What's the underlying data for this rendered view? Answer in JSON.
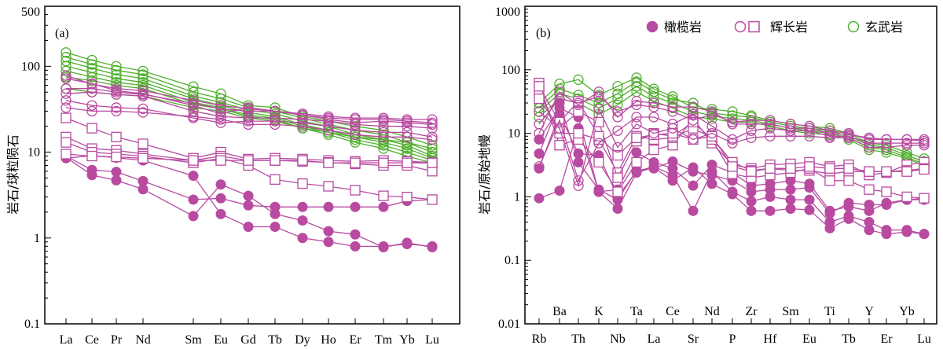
{
  "colors": {
    "magenta": "#b84aa0",
    "green": "#4fae2c",
    "axis": "#000000"
  },
  "panels": [
    {
      "label": "(a)",
      "ylabel": "岩石/球粒陨石",
      "ytick_labels": [
        "500",
        "100",
        "10",
        "1",
        "0.1"
      ],
      "yticks": [
        500,
        100,
        10,
        1,
        0.1
      ],
      "ylim": [
        0.1,
        500
      ],
      "categories": [
        "La",
        "Ce",
        "Pr",
        "Nd",
        "Sm",
        "Eu",
        "Gd",
        "Tb",
        "Dy",
        "Ho",
        "Er",
        "Tm",
        "Yb",
        "Lu"
      ]
    },
    {
      "label": "(b)",
      "ylabel": "岩石/原始地幔",
      "ytick_labels": [
        "1000",
        "100",
        "10",
        "1",
        "0.1",
        "0.01"
      ],
      "yticks": [
        1000,
        100,
        10,
        1,
        0.1,
        0.01
      ],
      "ylim": [
        0.01,
        1000
      ],
      "categories": [
        "Rb",
        "Ba",
        "Th",
        "K",
        "Nb",
        "Ta",
        "La",
        "Ce",
        "Sr",
        "Nd",
        "P",
        "Zr",
        "Hf",
        "Sm",
        "Eu",
        "Ti",
        "Tb",
        "Y",
        "Er",
        "Yb",
        "Lu"
      ]
    }
  ],
  "legend": [
    {
      "name": "橄榄岩",
      "symbol": "filled-circle",
      "color": "#b84aa0"
    },
    {
      "name": "辉长岩",
      "symbol": "open-circle-and-square",
      "color": "#b84aa0"
    },
    {
      "name": "玄武岩",
      "symbol": "open-circle",
      "color": "#4fae2c"
    }
  ],
  "chart_data": [
    {
      "type": "line",
      "title": "",
      "xlabel": "",
      "ylabel": "岩石/球粒陨石",
      "yscale": "log",
      "ylim": [
        0.1,
        500
      ],
      "categories": [
        "La",
        "Ce",
        "Pr",
        "Nd",
        "Sm",
        "Eu",
        "Gd",
        "Tb",
        "Dy",
        "Ho",
        "Er",
        "Tm",
        "Yb",
        "Lu"
      ],
      "series": [
        {
          "group": "橄榄岩",
          "marker": "filled-circle",
          "values": [
            9,
            6.2,
            5.9,
            4.6,
            2.8,
            2.9,
            2.4,
            2.3,
            2.3,
            2.3,
            2.3,
            2.3,
            2.7,
            2.8
          ]
        },
        {
          "group": "橄榄岩",
          "marker": "filled-circle",
          "values": [
            8.7,
            5.4,
            4.7,
            3.7,
            1.8,
            4.2,
            3.1,
            1.9,
            1.6,
            1.2,
            1.1,
            0.78,
            0.88,
            0.78
          ]
        },
        {
          "group": "橄榄岩",
          "marker": "filled-circle",
          "values": [
            8.5,
            9.1,
            8.6,
            8.0,
            5.3,
            1.9,
            1.35,
            1.35,
            1.0,
            0.9,
            0.8,
            0.8,
            0.85,
            0.8
          ]
        },
        {
          "group": "辉长岩",
          "marker": "open-square",
          "values": [
            25,
            19,
            15,
            12.5,
            8.5,
            10,
            8.3,
            8.5,
            8.3,
            8.0,
            7.8,
            8.0,
            7.8,
            7.6
          ]
        },
        {
          "group": "辉长岩",
          "marker": "open-square",
          "values": [
            15,
            11,
            10.5,
            9.5,
            8.0,
            9.0,
            8.0,
            8.0,
            7.8,
            7.6,
            7.3,
            7.0,
            7.0,
            6.0
          ]
        },
        {
          "group": "辉长岩",
          "marker": "open-square",
          "values": [
            13,
            10,
            9.5,
            9.0,
            7.5,
            8.5,
            7.0,
            4.8,
            4.3,
            4.0,
            3.6,
            3.1,
            3.0,
            2.8
          ]
        },
        {
          "group": "辉长岩",
          "marker": "open-square",
          "values": [
            9.5,
            9.0,
            8.8,
            8.5,
            8.0,
            8.0,
            8.0,
            8.0,
            8.0,
            7.5,
            7.5,
            7.5,
            7.5,
            7.5
          ]
        },
        {
          "group": "辉长岩",
          "marker": "open-circle",
          "values": [
            72,
            63,
            52,
            48,
            35,
            28,
            33,
            30,
            27,
            24,
            22,
            23,
            22,
            21
          ]
        },
        {
          "group": "辉长岩",
          "marker": "open-circle",
          "values": [
            48,
            50,
            47,
            45,
            30,
            26,
            25,
            25,
            24,
            23,
            21,
            20,
            20,
            19
          ]
        },
        {
          "group": "辉长岩",
          "marker": "open-circle",
          "values": [
            40,
            35,
            33,
            32,
            25,
            22,
            23,
            23,
            22,
            20,
            18,
            17,
            17,
            15
          ]
        },
        {
          "group": "辉长岩",
          "marker": "open-circle",
          "values": [
            33,
            30,
            30,
            29,
            26,
            24,
            21,
            21,
            20,
            18,
            16,
            15,
            15,
            14
          ]
        },
        {
          "group": "辉长岩",
          "marker": "open-circle",
          "values": [
            55,
            55,
            50,
            47,
            37,
            32,
            30,
            30,
            27,
            25,
            24,
            24,
            23,
            22
          ]
        },
        {
          "group": "辉长岩",
          "marker": "open-circle",
          "values": [
            78,
            62,
            55,
            52,
            40,
            35,
            32,
            30,
            28,
            26,
            25,
            25,
            24,
            24
          ]
        },
        {
          "group": "玄武岩",
          "marker": "open-circle",
          "values": [
            145,
            118,
            100,
            88,
            58,
            48,
            35,
            33,
            26,
            23,
            20,
            18,
            15,
            12
          ]
        },
        {
          "group": "玄武岩",
          "marker": "open-circle",
          "values": [
            128,
            105,
            90,
            80,
            50,
            42,
            33,
            30,
            25,
            21,
            18,
            16,
            13,
            10
          ]
        },
        {
          "group": "玄武岩",
          "marker": "open-circle",
          "values": [
            115,
            95,
            80,
            72,
            45,
            38,
            31,
            28,
            23,
            20,
            16,
            14,
            12,
            9
          ]
        },
        {
          "group": "玄武岩",
          "marker": "open-circle",
          "values": [
            100,
            85,
            72,
            65,
            42,
            35,
            29,
            26,
            21,
            18,
            15,
            13,
            11,
            8.5
          ]
        },
        {
          "group": "玄武岩",
          "marker": "open-circle",
          "values": [
            88,
            75,
            65,
            60,
            38,
            33,
            27,
            25,
            20,
            17,
            14,
            12,
            10,
            8
          ]
        },
        {
          "group": "玄武岩",
          "marker": "open-circle",
          "values": [
            75,
            68,
            60,
            55,
            36,
            32,
            26,
            24,
            19,
            16,
            13,
            11,
            9,
            7.5
          ]
        },
        {
          "group": "玄武岩",
          "marker": "open-circle",
          "values": [
            55,
            50,
            47,
            45,
            33,
            30,
            25,
            23,
            19,
            17,
            15,
            14,
            13,
            11
          ]
        }
      ]
    },
    {
      "type": "line",
      "title": "",
      "xlabel": "",
      "ylabel": "岩石/原始地幔",
      "yscale": "log",
      "ylim": [
        0.01,
        1000
      ],
      "categories": [
        "Rb",
        "Ba",
        "Th",
        "K",
        "Nb",
        "Ta",
        "La",
        "Ce",
        "Sr",
        "Nd",
        "P",
        "Zr",
        "Hf",
        "Sm",
        "Eu",
        "Ti",
        "Tb",
        "Y",
        "Er",
        "Yb",
        "Lu"
      ],
      "series": [
        {
          "group": "橄榄岩",
          "marker": "filled-circle",
          "values": [
            0.95,
            1.25,
            12,
            1.2,
            0.65,
            2.4,
            2.9,
            1.8,
            2.9,
            1.6,
            1.1,
            0.6,
            0.6,
            0.65,
            0.62,
            0.32,
            0.45,
            0.3,
            0.26,
            0.28,
            0.26
          ]
        },
        {
          "group": "橄榄岩",
          "marker": "filled-circle",
          "values": [
            2.8,
            20,
            4.8,
            4.5,
            1.0,
            2.5,
            3.0,
            2.2,
            0.6,
            2.5,
            1.2,
            0.85,
            1.0,
            0.9,
            0.9,
            0.4,
            0.5,
            0.4,
            0.3,
            0.3,
            0.26
          ]
        },
        {
          "group": "橄榄岩",
          "marker": "filled-circle",
          "values": [
            4.8,
            30,
            3.5,
            1.3,
            0.9,
            2.6,
            2.8,
            3.6,
            2.5,
            2.2,
            1.8,
            1.2,
            1.3,
            1.3,
            1.4,
            0.55,
            0.8,
            0.75,
            0.75,
            0.9,
            0.9
          ]
        },
        {
          "group": "橄榄岩",
          "marker": "filled-circle",
          "values": [
            8,
            25,
            18,
            1.2,
            1.3,
            5,
            3.5,
            2.8,
            1.5,
            3.2,
            2.4,
            1.5,
            1.6,
            1.8,
            1.6,
            0.6,
            0.7,
            0.6,
            0.8,
            0.9,
            0.95
          ]
        },
        {
          "group": "辉长岩",
          "marker": "open-square",
          "values": [
            62,
            6.5,
            8,
            3.5,
            1.2,
            3.5,
            5.5,
            6.5,
            17,
            7,
            3.2,
            2.8,
            3.2,
            3.3,
            3.5,
            3.0,
            3.2,
            2.2,
            2.4,
            3.2,
            3.5
          ]
        },
        {
          "group": "辉长岩",
          "marker": "open-square",
          "values": [
            45,
            10,
            10,
            8,
            2.4,
            9,
            8,
            8.5,
            12,
            8.5,
            3.5,
            2.6,
            2.8,
            2.6,
            2.6,
            2.3,
            2.5,
            2.5,
            2.5,
            2.6,
            2.8
          ]
        },
        {
          "group": "辉长岩",
          "marker": "open-square",
          "values": [
            35,
            12,
            22,
            15,
            2.0,
            7.5,
            10,
            9,
            15,
            8,
            2.3,
            2.0,
            2.2,
            2.4,
            2.8,
            1.8,
            1.8,
            1.3,
            1.2,
            1.0,
            0.95
          ]
        },
        {
          "group": "辉长岩",
          "marker": "open-square",
          "values": [
            55,
            15,
            32,
            9,
            4.5,
            8.5,
            9.5,
            10,
            8,
            9,
            3.0,
            2.5,
            2.8,
            2.8,
            3.0,
            2.8,
            2.8,
            2.5,
            2.5,
            2.5,
            2.7
          ]
        },
        {
          "group": "辉长岩",
          "marker": "open-circle",
          "values": [
            22,
            12,
            1.5,
            24,
            6,
            14,
            10,
            12,
            8,
            10,
            7,
            8.5,
            9,
            9,
            9,
            8.5,
            8.5,
            6,
            6,
            6.5,
            6.5
          ]
        },
        {
          "group": "辉长岩",
          "marker": "open-circle",
          "values": [
            3,
            16,
            1.8,
            7,
            11,
            18,
            18,
            14,
            20,
            13,
            8,
            11,
            12,
            11,
            11,
            9,
            9,
            7,
            7,
            7,
            7
          ]
        },
        {
          "group": "辉长岩",
          "marker": "open-circle",
          "values": [
            14,
            35,
            30,
            38,
            22,
            28,
            26,
            22,
            16,
            20,
            15,
            16,
            16,
            14,
            13,
            11,
            10,
            8,
            8,
            8,
            7.5
          ]
        },
        {
          "group": "辉长岩",
          "marker": "open-circle",
          "values": [
            10,
            45,
            28,
            45,
            18,
            32,
            30,
            26,
            26,
            22,
            14,
            14,
            14,
            12,
            12,
            10,
            9.5,
            8.5,
            8,
            8,
            8
          ]
        },
        {
          "group": "玄武岩",
          "marker": "open-circle",
          "values": [
            30,
            60,
            70,
            40,
            55,
            75,
            50,
            38,
            25,
            24,
            22,
            19,
            16,
            14,
            13,
            12,
            10,
            7,
            6.5,
            5,
            4
          ]
        },
        {
          "group": "玄武岩",
          "marker": "open-circle",
          "values": [
            25,
            50,
            40,
            30,
            42,
            65,
            45,
            34,
            30,
            21,
            19,
            18,
            15,
            13,
            12,
            11,
            9,
            6.5,
            6,
            4.5,
            3.6
          ]
        },
        {
          "group": "玄武岩",
          "marker": "open-circle",
          "values": [
            22,
            42,
            35,
            25,
            35,
            55,
            38,
            30,
            22,
            19,
            17,
            16,
            14,
            12,
            11,
            10,
            8.5,
            6,
            5.5,
            4.2,
            3.3
          ]
        },
        {
          "group": "玄武岩",
          "marker": "open-circle",
          "values": [
            18,
            35,
            30,
            20,
            28,
            45,
            32,
            25,
            18,
            17,
            15,
            15,
            13,
            11,
            10,
            9.5,
            8,
            5.5,
            5,
            4.0,
            3.1
          ]
        }
      ]
    }
  ]
}
